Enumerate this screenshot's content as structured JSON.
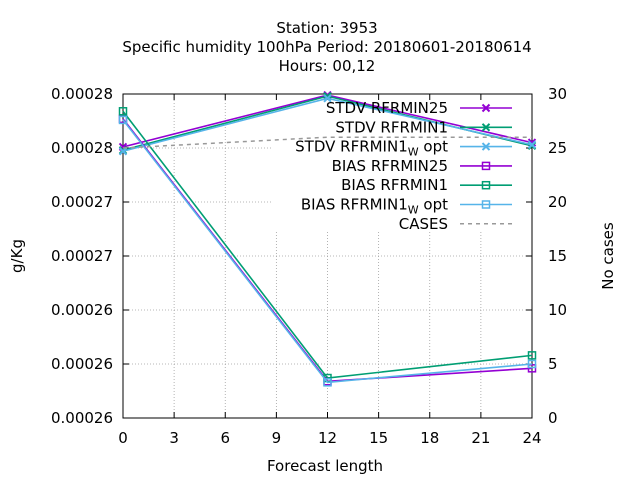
{
  "chart_data": {
    "type": "line",
    "title_lines": [
      "Station:     3953",
      "Specific humidity 100hPa   Period: 20180601-20180614",
      "Hours:  00,12"
    ],
    "xlabel": "Forecast length",
    "ylabel": "g/Kg",
    "y2label": "No cases",
    "x_ticks": [
      0,
      3,
      6,
      9,
      12,
      15,
      18,
      21,
      24
    ],
    "x_tick_labels": [
      "0",
      "3",
      "6",
      "9",
      "12",
      "15",
      "18",
      "21",
      "24"
    ],
    "xlim": [
      0,
      24
    ],
    "ylim": [
      0.000255,
      0.000285
    ],
    "y_ticks": [
      0.000255,
      0.00026,
      0.000265,
      0.00027,
      0.000275,
      0.00028,
      0.000285
    ],
    "y_tick_labels": [
      "0.00026",
      "0.00026",
      "0.00026",
      "0.00027",
      "0.00027",
      "0.00028",
      "0.00028"
    ],
    "y2lim": [
      0,
      30
    ],
    "y2_ticks": [
      0,
      5,
      10,
      15,
      20,
      25,
      30
    ],
    "y2_tick_labels": [
      "0",
      "5",
      "10",
      "15",
      "20",
      "25",
      "30"
    ],
    "grid": true,
    "legend_position": "top-right",
    "series": [
      {
        "name": "STDV RFRMIN25",
        "axis": "y",
        "color": "#9400d3",
        "marker": "x",
        "x": [
          0,
          12,
          24
        ],
        "values": [
          0.0002801,
          0.0002849,
          0.0002805
        ]
      },
      {
        "name": "STDV RFRMIN1",
        "axis": "y",
        "color": "#009e73",
        "marker": "x",
        "x": [
          0,
          12,
          24
        ],
        "values": [
          0.0002798,
          0.0002848,
          0.0002802
        ]
      },
      {
        "name": "STDV RFRMIN1_W opt",
        "axis": "y",
        "color": "#56b4e9",
        "marker": "x",
        "x": [
          0,
          12,
          24
        ],
        "values": [
          0.0002797,
          0.0002846,
          0.0002803
        ]
      },
      {
        "name": "BIAS RFRMIN25",
        "axis": "y",
        "color": "#9400d3",
        "marker": "square",
        "x": [
          0,
          12,
          24
        ],
        "values": [
          0.0002827,
          0.0002584,
          0.0002596
        ]
      },
      {
        "name": "BIAS RFRMIN1",
        "axis": "y",
        "color": "#009e73",
        "marker": "square",
        "x": [
          0,
          12,
          24
        ],
        "values": [
          0.0002834,
          0.0002587,
          0.0002608
        ]
      },
      {
        "name": "BIAS RFRMIN1_W opt",
        "axis": "y",
        "color": "#56b4e9",
        "marker": "square",
        "x": [
          0,
          12,
          24
        ],
        "values": [
          0.0002826,
          0.0002583,
          0.00026
        ]
      },
      {
        "name": "CASES",
        "axis": "y2",
        "color": "#999999",
        "marker": "none",
        "dash": true,
        "x": [
          0,
          12,
          24
        ],
        "values": [
          25,
          26,
          26
        ]
      }
    ]
  }
}
